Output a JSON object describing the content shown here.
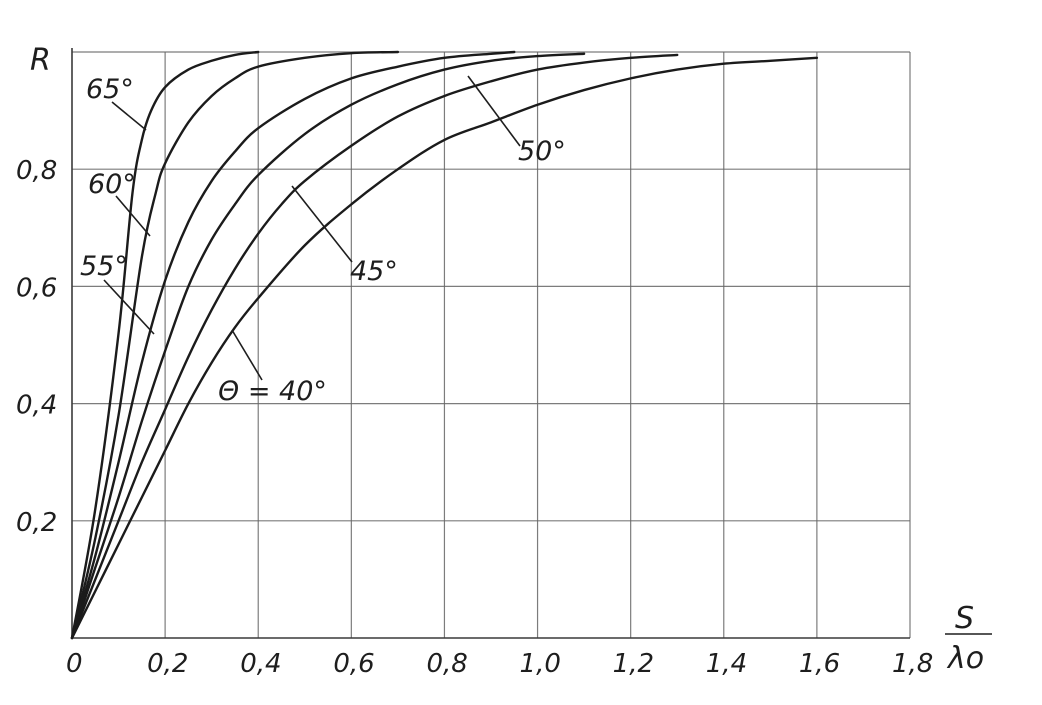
{
  "chart_data": {
    "type": "line",
    "title": "",
    "xlabel_numerator": "S",
    "xlabel_denominator": "λo",
    "ylabel": "R",
    "xlim": [
      0,
      1.8
    ],
    "ylim": [
      0,
      1.0
    ],
    "grid": true,
    "x_ticks": [
      "0",
      "0,2",
      "0,4",
      "0,6",
      "0,8",
      "1,0",
      "1,2",
      "1,4",
      "1,6",
      "1,8"
    ],
    "y_ticks": [
      "0,2",
      "0,4",
      "0,6",
      "0,8"
    ],
    "series": [
      {
        "name": "Θ = 40°",
        "x": [
          0,
          0.05,
          0.1,
          0.15,
          0.2,
          0.25,
          0.3,
          0.35,
          0.4,
          0.5,
          0.6,
          0.7,
          0.8,
          0.9,
          1.0,
          1.1,
          1.2,
          1.3,
          1.4,
          1.5,
          1.6
        ],
        "y": [
          0,
          0.08,
          0.16,
          0.24,
          0.32,
          0.4,
          0.47,
          0.53,
          0.58,
          0.67,
          0.74,
          0.8,
          0.85,
          0.88,
          0.91,
          0.935,
          0.955,
          0.97,
          0.98,
          0.985,
          0.99
        ]
      },
      {
        "name": "45°",
        "x": [
          0,
          0.05,
          0.1,
          0.15,
          0.2,
          0.25,
          0.3,
          0.35,
          0.4,
          0.45,
          0.5,
          0.6,
          0.7,
          0.8,
          0.9,
          1.0,
          1.1,
          1.2,
          1.3
        ],
        "y": [
          0,
          0.1,
          0.2,
          0.3,
          0.39,
          0.48,
          0.56,
          0.63,
          0.69,
          0.74,
          0.78,
          0.84,
          0.89,
          0.925,
          0.95,
          0.97,
          0.982,
          0.99,
          0.995
        ]
      },
      {
        "name": "50°",
        "x": [
          0,
          0.05,
          0.1,
          0.15,
          0.2,
          0.25,
          0.3,
          0.35,
          0.4,
          0.5,
          0.6,
          0.7,
          0.8,
          0.9,
          1.0,
          1.1
        ],
        "y": [
          0,
          0.12,
          0.24,
          0.37,
          0.49,
          0.6,
          0.68,
          0.74,
          0.79,
          0.86,
          0.91,
          0.945,
          0.97,
          0.985,
          0.993,
          0.997
        ]
      },
      {
        "name": "55°",
        "x": [
          0,
          0.05,
          0.1,
          0.15,
          0.2,
          0.25,
          0.3,
          0.35,
          0.4,
          0.5,
          0.6,
          0.7,
          0.8,
          0.9,
          0.95
        ],
        "y": [
          0,
          0.14,
          0.3,
          0.47,
          0.61,
          0.71,
          0.78,
          0.83,
          0.87,
          0.92,
          0.955,
          0.975,
          0.99,
          0.997,
          1.0
        ]
      },
      {
        "name": "60°",
        "x": [
          0,
          0.05,
          0.1,
          0.15,
          0.18,
          0.2,
          0.25,
          0.3,
          0.35,
          0.4,
          0.5,
          0.6,
          0.7
        ],
        "y": [
          0,
          0.17,
          0.38,
          0.65,
          0.76,
          0.81,
          0.88,
          0.925,
          0.955,
          0.975,
          0.99,
          0.998,
          1.0
        ]
      },
      {
        "name": "65°",
        "x": [
          0,
          0.05,
          0.1,
          0.13,
          0.15,
          0.17,
          0.2,
          0.25,
          0.3,
          0.35,
          0.4
        ],
        "y": [
          0,
          0.22,
          0.52,
          0.76,
          0.85,
          0.9,
          0.94,
          0.97,
          0.985,
          0.995,
          1.0
        ]
      }
    ],
    "annotations": {
      "label_65": "65°",
      "label_60": "60°",
      "label_55": "55°",
      "label_50": "50°",
      "label_45": "45°",
      "label_40": "Θ = 40°"
    }
  }
}
